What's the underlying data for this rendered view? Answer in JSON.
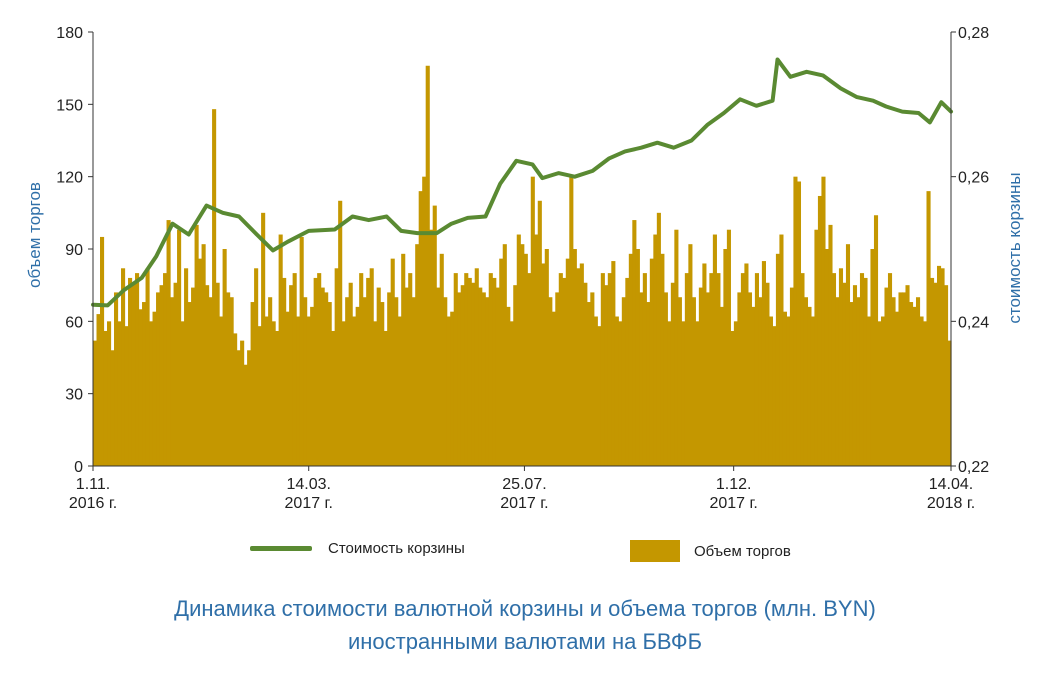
{
  "chart_data": {
    "type": "bar+line",
    "caption_line1": "Динамика стоимости валютной корзины и объема торгов (млн. BYN)",
    "caption_line2": "иностранными валютами на БВФБ",
    "ylabel_left": "объем торгов",
    "ylabel_right": "стоимость корзины",
    "ylim_left": [
      0,
      180
    ],
    "ylim_right": [
      0.22,
      0.28
    ],
    "left_ticks": [
      "0",
      "30",
      "60",
      "90",
      "120",
      "150",
      "180"
    ],
    "right_ticks": [
      "0,22",
      "0,24",
      "0,26",
      "0,28"
    ],
    "x_ticks": [
      {
        "line1": "1.11.",
        "line2": "2016 г.",
        "date": "2016-11-01"
      },
      {
        "line1": "14.03.",
        "line2": "2017 г.",
        "date": "2017-03-14"
      },
      {
        "line1": "25.07.",
        "line2": "2017 г.",
        "date": "2017-07-25"
      },
      {
        "line1": "1.12.",
        "line2": "2017 г.",
        "date": "2017-12-01"
      },
      {
        "line1": "14.04.",
        "line2": "2018 г.",
        "date": "2018-04-14"
      }
    ],
    "legend": [
      {
        "label": "Стоимость корзины",
        "color": "#5a8a32",
        "kind": "line"
      },
      {
        "label": "Объем торгов",
        "color": "#c49700",
        "kind": "bar"
      }
    ],
    "colors": {
      "bars": "#c49700",
      "line": "#5a8a32",
      "axis_title": "#2f6fa8"
    },
    "x_range": [
      "2016-11-01",
      "2018-04-14"
    ],
    "series": [
      {
        "name": "Стоимость корзины",
        "axis": "right",
        "points": [
          [
            "2016-11-01",
            0.2423
          ],
          [
            "2016-11-10",
            0.2422
          ],
          [
            "2016-11-20",
            0.2443
          ],
          [
            "2016-12-01",
            0.246
          ],
          [
            "2016-12-10",
            0.249
          ],
          [
            "2016-12-20",
            0.2535
          ],
          [
            "2016-12-30",
            0.252
          ],
          [
            "2017-01-10",
            0.256
          ],
          [
            "2017-01-20",
            0.255
          ],
          [
            "2017-01-30",
            0.2545
          ],
          [
            "2017-02-10",
            0.252
          ],
          [
            "2017-02-20",
            0.2498
          ],
          [
            "2017-03-01",
            0.251
          ],
          [
            "2017-03-14",
            0.2525
          ],
          [
            "2017-03-30",
            0.2527
          ],
          [
            "2017-04-10",
            0.2545
          ],
          [
            "2017-04-20",
            0.254
          ],
          [
            "2017-05-01",
            0.2545
          ],
          [
            "2017-05-10",
            0.2525
          ],
          [
            "2017-05-20",
            0.2522
          ],
          [
            "2017-06-01",
            0.2522
          ],
          [
            "2017-06-10",
            0.2535
          ],
          [
            "2017-06-20",
            0.2543
          ],
          [
            "2017-07-01",
            0.2545
          ],
          [
            "2017-07-10",
            0.259
          ],
          [
            "2017-07-20",
            0.2622
          ],
          [
            "2017-07-30",
            0.2617
          ],
          [
            "2017-08-05",
            0.2598
          ],
          [
            "2017-08-15",
            0.2605
          ],
          [
            "2017-08-25",
            0.26
          ],
          [
            "2017-09-05",
            0.2608
          ],
          [
            "2017-09-15",
            0.2625
          ],
          [
            "2017-09-25",
            0.2635
          ],
          [
            "2017-10-05",
            0.264
          ],
          [
            "2017-10-15",
            0.2647
          ],
          [
            "2017-10-25",
            0.264
          ],
          [
            "2017-11-05",
            0.265
          ],
          [
            "2017-11-15",
            0.2672
          ],
          [
            "2017-11-25",
            0.2688
          ],
          [
            "2017-12-05",
            0.2707
          ],
          [
            "2017-12-15",
            0.2698
          ],
          [
            "2017-12-25",
            0.2705
          ],
          [
            "2017-12-28",
            0.2762
          ],
          [
            "2018-01-05",
            0.2738
          ],
          [
            "2018-01-15",
            0.2745
          ],
          [
            "2018-01-25",
            0.274
          ],
          [
            "2018-02-05",
            0.2722
          ],
          [
            "2018-02-15",
            0.271
          ],
          [
            "2018-02-25",
            0.2705
          ],
          [
            "2018-03-05",
            0.2697
          ],
          [
            "2018-03-15",
            0.269
          ],
          [
            "2018-03-25",
            0.2688
          ],
          [
            "2018-04-01",
            0.2675
          ],
          [
            "2018-04-08",
            0.2703
          ],
          [
            "2018-04-14",
            0.269
          ]
        ]
      },
      {
        "name": "Объем торгов",
        "axis": "left",
        "values": [
          52,
          63,
          95,
          56,
          60,
          48,
          72,
          60,
          82,
          58,
          78,
          76,
          80,
          65,
          68,
          82,
          60,
          64,
          72,
          75,
          80,
          102,
          70,
          76,
          98,
          60,
          82,
          68,
          74,
          100,
          86,
          92,
          75,
          70,
          148,
          76,
          62,
          90,
          72,
          70,
          55,
          48,
          52,
          42,
          48,
          68,
          82,
          58,
          105,
          62,
          70,
          60,
          56,
          96,
          78,
          64,
          75,
          80,
          62,
          95,
          70,
          62,
          66,
          78,
          80,
          74,
          72,
          68,
          56,
          82,
          110,
          60,
          70,
          76,
          62,
          66,
          80,
          70,
          78,
          82,
          60,
          74,
          68,
          56,
          72,
          86,
          70,
          62,
          88,
          74,
          80,
          70,
          92,
          114,
          120,
          166,
          98,
          108,
          74,
          88,
          70,
          62,
          64,
          80,
          72,
          75,
          80,
          78,
          76,
          82,
          74,
          72,
          70,
          80,
          78,
          74,
          86,
          92,
          66,
          60,
          75,
          96,
          92,
          88,
          80,
          120,
          96,
          110,
          84,
          90,
          70,
          64,
          72,
          80,
          78,
          86,
          120,
          90,
          82,
          84,
          76,
          68,
          72,
          62,
          58,
          80,
          75,
          80,
          85,
          62,
          60,
          70,
          78,
          88,
          102,
          90,
          72,
          80,
          68,
          86,
          96,
          105,
          88,
          72,
          60,
          76,
          98,
          70,
          60,
          80,
          92,
          70,
          60,
          74,
          84,
          72,
          80,
          96,
          80,
          66,
          90,
          98,
          56,
          60,
          72,
          80,
          84,
          72,
          66,
          80,
          70,
          85,
          76,
          62,
          58,
          88,
          96,
          64,
          62,
          74,
          120,
          118,
          80,
          70,
          66,
          62,
          98,
          112,
          120,
          90,
          100,
          80,
          70,
          82,
          76,
          92,
          68,
          75,
          70,
          80,
          78,
          62,
          90,
          104,
          60,
          62,
          74,
          80,
          70,
          64,
          72,
          72,
          75,
          68,
          66,
          70,
          62,
          60,
          114,
          78,
          76,
          83,
          82,
          75,
          52
        ]
      }
    ]
  }
}
